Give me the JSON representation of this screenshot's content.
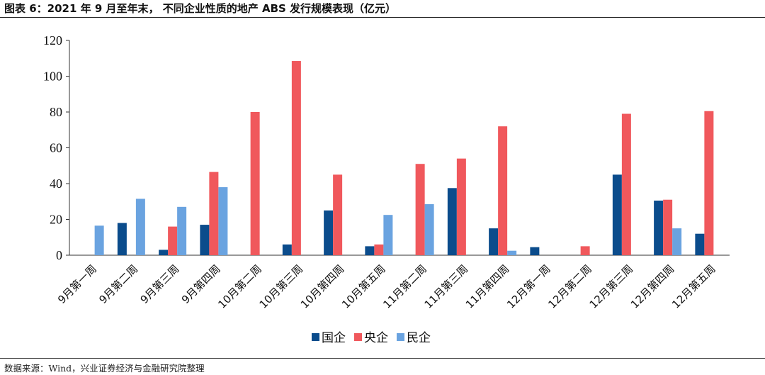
{
  "header": {
    "title": "图表 6：2021 年 9 月至年末， 不同企业性质的地产 ABS 发行规模表现（亿元）"
  },
  "footer": {
    "source": "数据来源：Wind，兴业证券经济与金融研究院整理"
  },
  "colors": {
    "国企": "#0b4c8c",
    "央企": "#f0585c",
    "民企": "#6aa3e0"
  },
  "chart_data": {
    "type": "bar",
    "title": "",
    "xlabel": "",
    "ylabel": "",
    "ylim": [
      0,
      120
    ],
    "yticks": [
      0,
      20,
      40,
      60,
      80,
      100,
      120
    ],
    "grid": false,
    "legend_position": "bottom",
    "categories": [
      "9月第一周",
      "9月第二周",
      "9月第三周",
      "9月第四周",
      "10月第二周",
      "10月第三周",
      "10月第四周",
      "10月第五周",
      "11月第二周",
      "11月第三周",
      "11月第四周",
      "12月第一周",
      "12月第二周",
      "12月第三周",
      "12月第四周",
      "12月第五周"
    ],
    "series": [
      {
        "name": "国企",
        "values": [
          0,
          18,
          3,
          17,
          0,
          6,
          25,
          5,
          0,
          37.5,
          15,
          4.5,
          0,
          45,
          30.5,
          12
        ]
      },
      {
        "name": "央企",
        "values": [
          0,
          0,
          16,
          46.5,
          80,
          108.5,
          45,
          6,
          51,
          54,
          72,
          0,
          5,
          79,
          31,
          80.5
        ]
      },
      {
        "name": "民企",
        "values": [
          16.5,
          31.5,
          27,
          38,
          0,
          0,
          0,
          22.5,
          28.5,
          0,
          2.5,
          0,
          0,
          0,
          15,
          0
        ]
      }
    ]
  }
}
